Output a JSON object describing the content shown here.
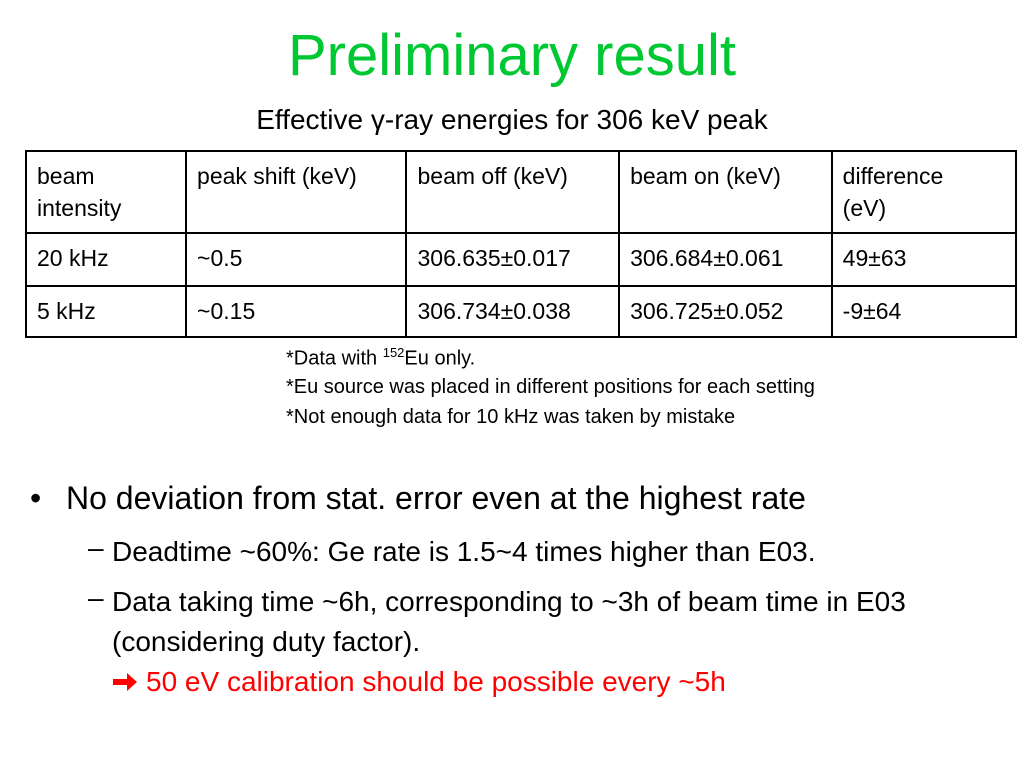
{
  "title": "Preliminary result",
  "subtitle": "Effective γ-ray energies for 306 keV peak",
  "table": {
    "header": [
      "beam intensity",
      "peak shift (keV)",
      "beam off (keV)",
      "beam on (keV)",
      "difference (eV)"
    ],
    "rows": [
      [
        "20 kHz",
        "~0.5",
        "306.635±0.017",
        "306.684±0.061",
        "49±63"
      ],
      [
        "5 kHz",
        "~0.15",
        "306.734±0.038",
        "306.725±0.052",
        "-9±64"
      ]
    ]
  },
  "footnotes": [
    {
      "parts": [
        "*Data with ",
        "152",
        "Eu only."
      ]
    },
    {
      "parts": [
        "*Eu source was placed in different positions for each setting"
      ]
    },
    {
      "parts": [
        "*Not enough data for 10 kHz was taken by mistake"
      ]
    }
  ],
  "bullets": [
    {
      "text": "No deviation from stat. error even at the highest rate",
      "subitems": [
        {
          "text": "Deadtime ~60%: Ge rate is 1.5~4 times higher than E03."
        },
        {
          "text": "Data taking time ~6h, corresponding to ~3h of beam time in E03 (considering duty factor).",
          "note": "50 eV calibration should be possible every ~5h"
        }
      ]
    }
  ]
}
